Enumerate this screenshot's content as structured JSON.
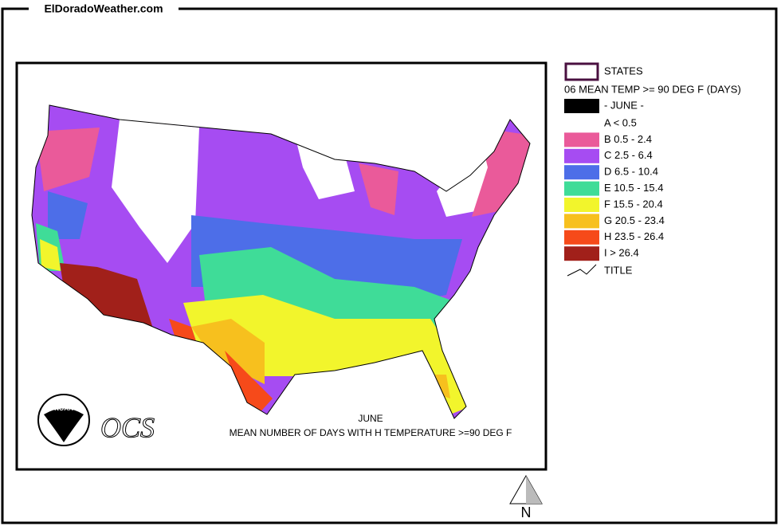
{
  "header": {
    "title": "ElDoradoWeather.com"
  },
  "legend": {
    "states": "STATES",
    "heading": "06 MEAN TEMP >= 90 DEG F (DAYS)",
    "month": "- JUNE -",
    "classes": [
      {
        "label": "A < 0.5",
        "color": "#ffffff"
      },
      {
        "label": "B 0.5 - 2.4",
        "color": "#ea5a9a"
      },
      {
        "label": "C 2.5 - 6.4",
        "color": "#a64cf2"
      },
      {
        "label": "D 6.5 - 10.4",
        "color": "#4d6ee8"
      },
      {
        "label": "E 10.5 - 15.4",
        "color": "#3fdc98"
      },
      {
        "label": "F 15.5 - 20.4",
        "color": "#f2f52c"
      },
      {
        "label": "G 20.5 - 23.4",
        "color": "#f7c01e"
      },
      {
        "label": "H 23.5 - 26.4",
        "color": "#f64a1a"
      },
      {
        "label": "I > 26.4",
        "color": "#a1201a"
      }
    ],
    "title_item": "TITLE"
  },
  "map": {
    "month": "JUNE",
    "caption": "MEAN NUMBER OF DAYS WITH H TEMPERATURE >=90 DEG F",
    "logo": "NOAA",
    "office": "OCS"
  },
  "compass": "N"
}
